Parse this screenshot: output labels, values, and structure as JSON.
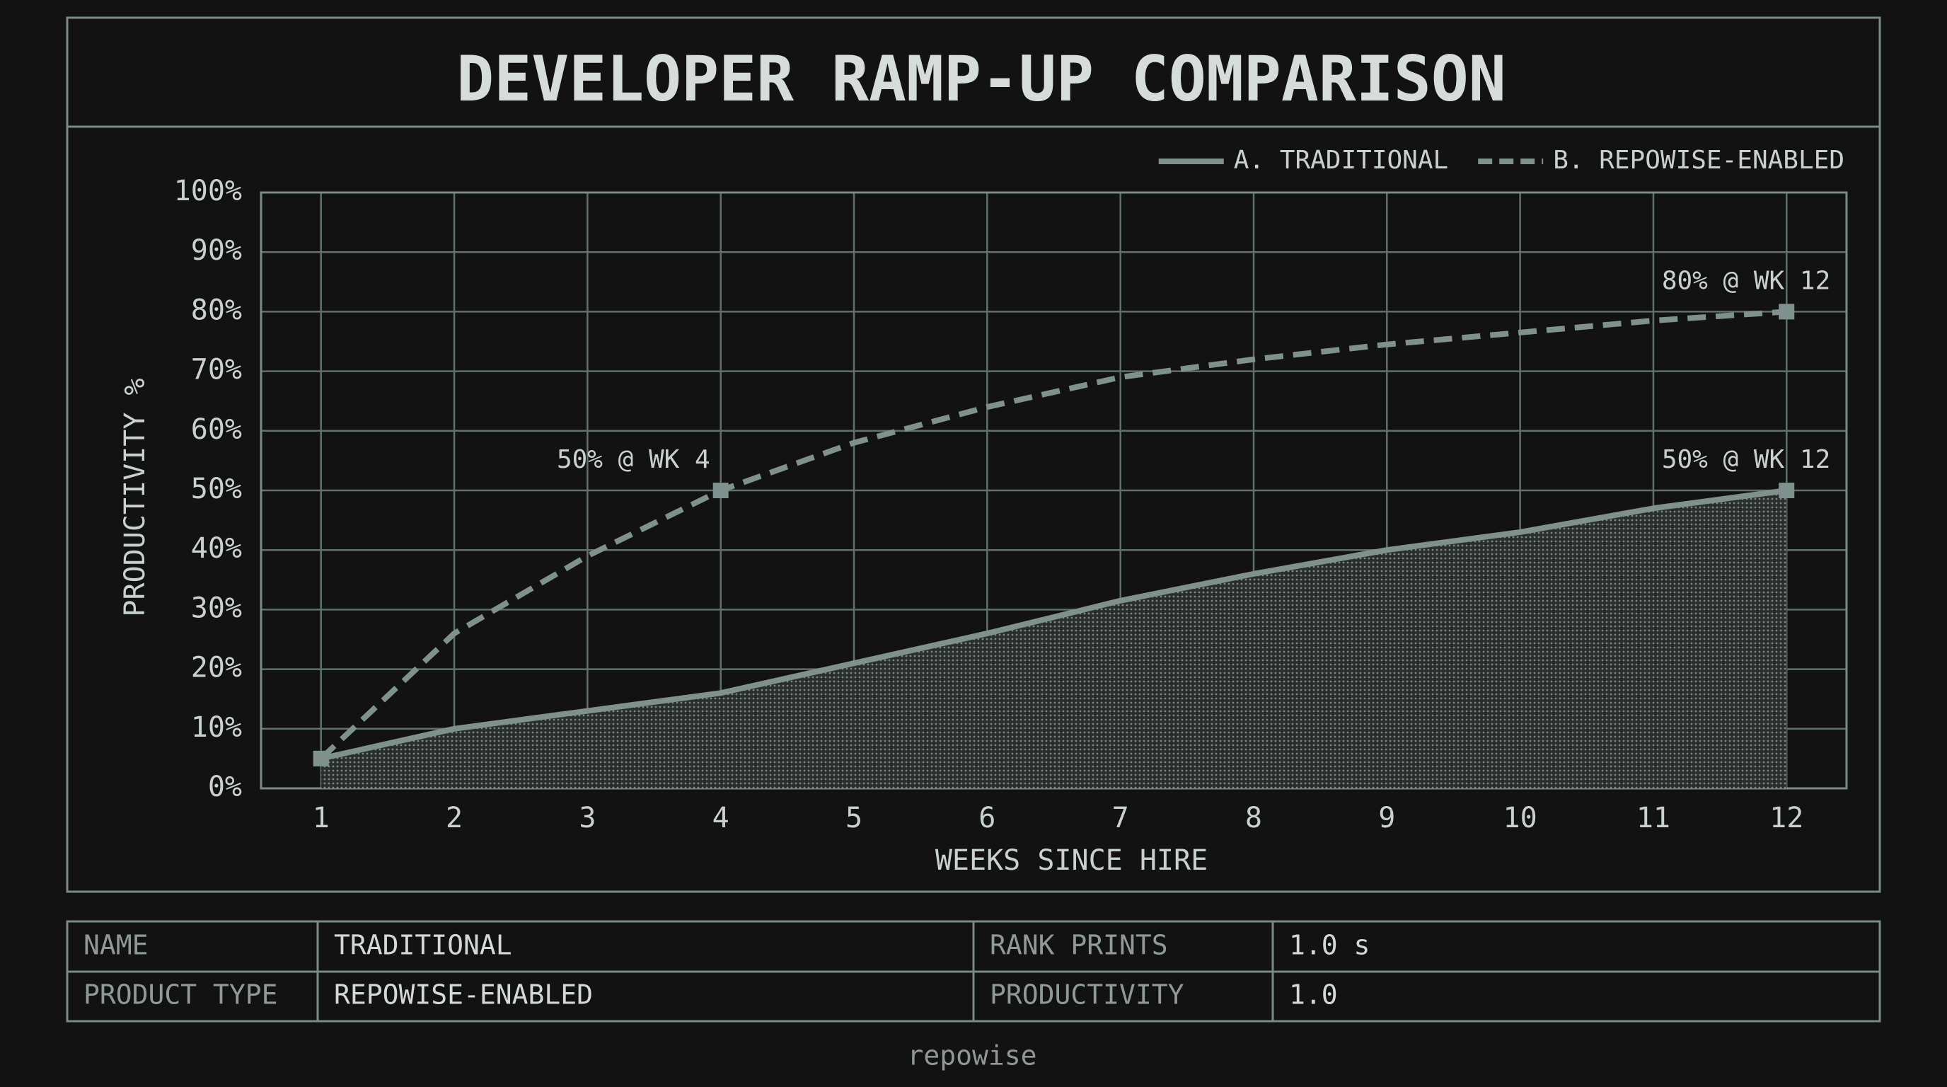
{
  "chart_data": {
    "type": "line",
    "title": "DEVELOPER RAMP-UP COMPARISON",
    "xlabel": "WEEKS SINCE HIRE",
    "ylabel": "PRODUCTIVITY %",
    "x": [
      1,
      2,
      3,
      4,
      5,
      6,
      7,
      8,
      9,
      10,
      11,
      12
    ],
    "series": [
      {
        "name": "A. TRADITIONAL",
        "color": "#7f918d",
        "style": "solid",
        "fill": true,
        "values": [
          5,
          10,
          13,
          16,
          21,
          26,
          31.5,
          36,
          40,
          43,
          47,
          50
        ]
      },
      {
        "name": "B. REPOWISE-ENABLED",
        "color": "#7f918d",
        "style": "dashed",
        "fill": false,
        "values": [
          5,
          26,
          39,
          50,
          58,
          64,
          69,
          72,
          74.5,
          76.5,
          78.5,
          80
        ]
      }
    ],
    "xlim": [
      0.55,
      12.45
    ],
    "ylim": [
      0,
      100
    ],
    "xticks": [
      1,
      2,
      3,
      4,
      5,
      6,
      7,
      8,
      9,
      10,
      11,
      12
    ],
    "yticks": [
      {
        "value": 0,
        "label": "0%"
      },
      {
        "value": 10,
        "label": "10%"
      },
      {
        "value": 20,
        "label": "20%"
      },
      {
        "value": 30,
        "label": "30%"
      },
      {
        "value": 40,
        "label": "40%"
      },
      {
        "value": 50,
        "label": "50%"
      },
      {
        "value": 60,
        "label": "60%"
      },
      {
        "value": 70,
        "label": "70%"
      },
      {
        "value": 80,
        "label": "80%"
      },
      {
        "value": 90,
        "label": "90%"
      },
      {
        "value": 100,
        "label": "100%"
      }
    ],
    "grid": true,
    "legend": "top-right",
    "annotations": [
      {
        "label": "50% @ WK 4",
        "x": 4,
        "y": 50
      },
      {
        "label": "80% @ WK 12",
        "x": 12,
        "y": 80
      },
      {
        "label": "50% @ WK 12",
        "x": 12,
        "y": 50
      }
    ]
  },
  "table": {
    "rows": [
      [
        "NAME",
        "TRADITIONAL",
        "RANK PRINTS",
        "1.0 s"
      ],
      [
        "PRODUCT TYPE",
        "REPOWISE-ENABLED",
        "PRODUCTIVITY",
        "1.0"
      ]
    ]
  },
  "footer": "repowise"
}
